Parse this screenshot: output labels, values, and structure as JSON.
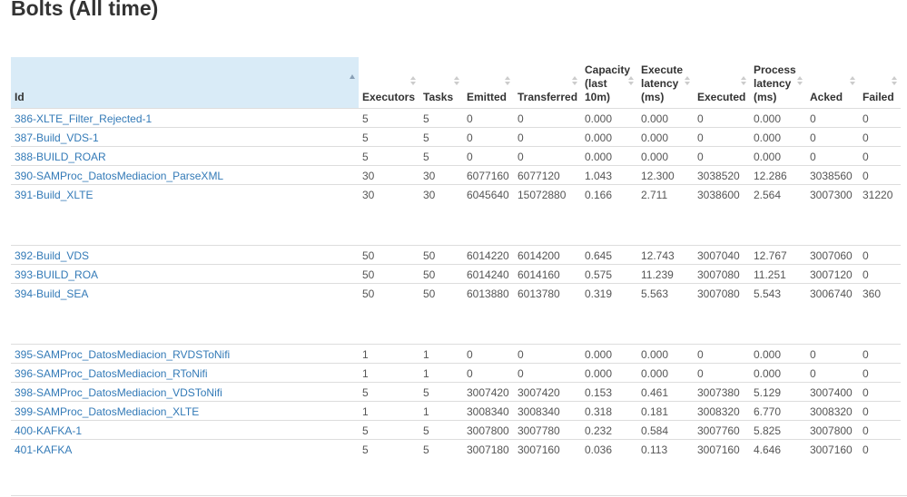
{
  "title": "Bolts (All time)",
  "table": {
    "headers": [
      "Id",
      "Executors",
      "Tasks",
      "Emitted",
      "Transferred",
      "Capacity (last 10m)",
      "Execute latency (ms)",
      "Executed",
      "Process latency (ms)",
      "Acked",
      "Failed"
    ],
    "rows": [
      [
        "386-XLTE_Filter_Rejected-1",
        "5",
        "5",
        "0",
        "0",
        "0.000",
        "0.000",
        "0",
        "0.000",
        "0",
        "0"
      ],
      [
        "387-Build_VDS-1",
        "5",
        "5",
        "0",
        "0",
        "0.000",
        "0.000",
        "0",
        "0.000",
        "0",
        "0"
      ],
      [
        "388-BUILD_ROAR",
        "5",
        "5",
        "0",
        "0",
        "0.000",
        "0.000",
        "0",
        "0.000",
        "0",
        "0"
      ],
      [
        "390-SAMProc_DatosMediacion_ParseXML",
        "30",
        "30",
        "6077160",
        "6077120",
        "1.043",
        "12.300",
        "3038520",
        "12.286",
        "3038560",
        "0"
      ],
      [
        "391-Build_XLTE",
        "30",
        "30",
        "6045640",
        "15072880",
        "0.166",
        "2.711",
        "3038600",
        "2.564",
        "3007300",
        "31220"
      ],
      [
        "392-Build_VDS",
        "50",
        "50",
        "6014220",
        "6014200",
        "0.645",
        "12.743",
        "3007040",
        "12.767",
        "3007060",
        "0"
      ],
      [
        "393-BUILD_ROA",
        "50",
        "50",
        "6014240",
        "6014160",
        "0.575",
        "11.239",
        "3007080",
        "11.251",
        "3007120",
        "0"
      ],
      [
        "394-Build_SEA",
        "50",
        "50",
        "6013880",
        "6013780",
        "0.319",
        "5.563",
        "3007080",
        "5.543",
        "3006740",
        "360"
      ],
      [
        "395-SAMProc_DatosMediacion_RVDSToNifi",
        "1",
        "1",
        "0",
        "0",
        "0.000",
        "0.000",
        "0",
        "0.000",
        "0",
        "0"
      ],
      [
        "396-SAMProc_DatosMediacion_RToNifi",
        "1",
        "1",
        "0",
        "0",
        "0.000",
        "0.000",
        "0",
        "0.000",
        "0",
        "0"
      ],
      [
        "398-SAMProc_DatosMediacion_VDSToNifi",
        "5",
        "5",
        "3007420",
        "3007420",
        "0.153",
        "0.461",
        "3007380",
        "5.129",
        "3007400",
        "0"
      ],
      [
        "399-SAMProc_DatosMediacion_XLTE",
        "1",
        "1",
        "3008340",
        "3008340",
        "0.318",
        "0.181",
        "3008320",
        "6.770",
        "3008320",
        "0"
      ],
      [
        "400-KAFKA-1",
        "5",
        "5",
        "3007800",
        "3007780",
        "0.232",
        "0.584",
        "3007760",
        "5.825",
        "3007800",
        "0"
      ],
      [
        "401-KAFKA",
        "5",
        "5",
        "3007180",
        "3007160",
        "0.036",
        "0.113",
        "3007160",
        "4.646",
        "3007160",
        "0"
      ]
    ]
  }
}
